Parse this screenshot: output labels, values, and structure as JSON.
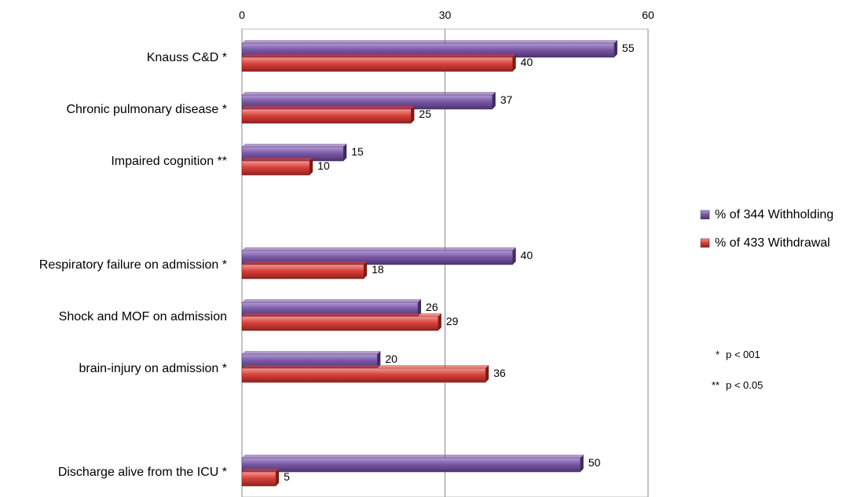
{
  "chart_data": {
    "type": "bar",
    "orientation": "horizontal",
    "xlim": [
      0,
      60
    ],
    "x_ticks": [
      0,
      30,
      60
    ],
    "grid": true,
    "legend_position": "right",
    "categories": [
      "Knauss C&D *",
      "Chronic pulmonary disease *",
      "Impaired cognition **",
      "",
      "Respiratory failure on admission *",
      "Shock and MOF on admission",
      "brain-injury on admission *",
      "",
      "Discharge alive from the ICU *"
    ],
    "series": [
      {
        "name": "% of 344 Withholding",
        "color": "#7b5aa6",
        "values": [
          55,
          37,
          15,
          null,
          40,
          26,
          20,
          null,
          50
        ]
      },
      {
        "name": "% of 433 Withdrawal",
        "color": "#d9413b",
        "values": [
          40,
          25,
          10,
          null,
          18,
          29,
          36,
          null,
          5
        ]
      }
    ],
    "notes": [
      {
        "symbol": "*",
        "text": "p < 001"
      },
      {
        "symbol": "**",
        "text": "p < 0.05"
      }
    ]
  }
}
